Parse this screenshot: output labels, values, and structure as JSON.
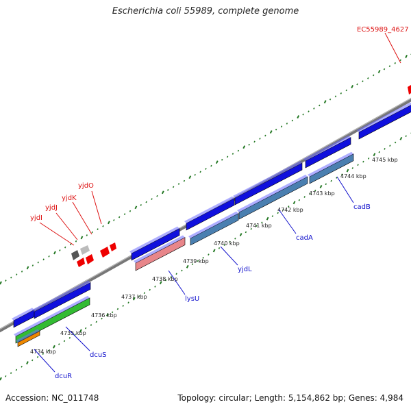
{
  "title": "Escherichia coli 55989, complete genome",
  "footer": {
    "accession": "Accession: NC_011748",
    "summary": "Topology: circular; Length: 5,154,862 bp; Genes: 4,984"
  },
  "colors": {
    "backbone": "#888888",
    "forward_gene": "#1010dd",
    "reverse_gene": "#4a7fb0",
    "lysU": "#e8868a",
    "dcuS": "#33bb33",
    "dcuR": "#ee8800",
    "rna": "#ee0000",
    "tick": "#227722"
  },
  "scale": {
    "unit": "kbp",
    "ticks": [
      "4734 kbp",
      "4735 kbp",
      "4736 kbp",
      "4737 kbp",
      "4738 kbp",
      "4739 kbp",
      "4740 kbp",
      "4741 kbp",
      "4742 kbp",
      "4743 kbp",
      "4744 kbp",
      "4745 kbp"
    ]
  },
  "gene_labels": {
    "forward": [
      "EC55989_4627"
    ],
    "rna": [
      "yjdI",
      "yjdJ",
      "yjdK",
      "yjdO"
    ],
    "reverse": [
      "dcuR",
      "dcuS",
      "lysU",
      "yjdL",
      "cadA",
      "cadB"
    ]
  }
}
